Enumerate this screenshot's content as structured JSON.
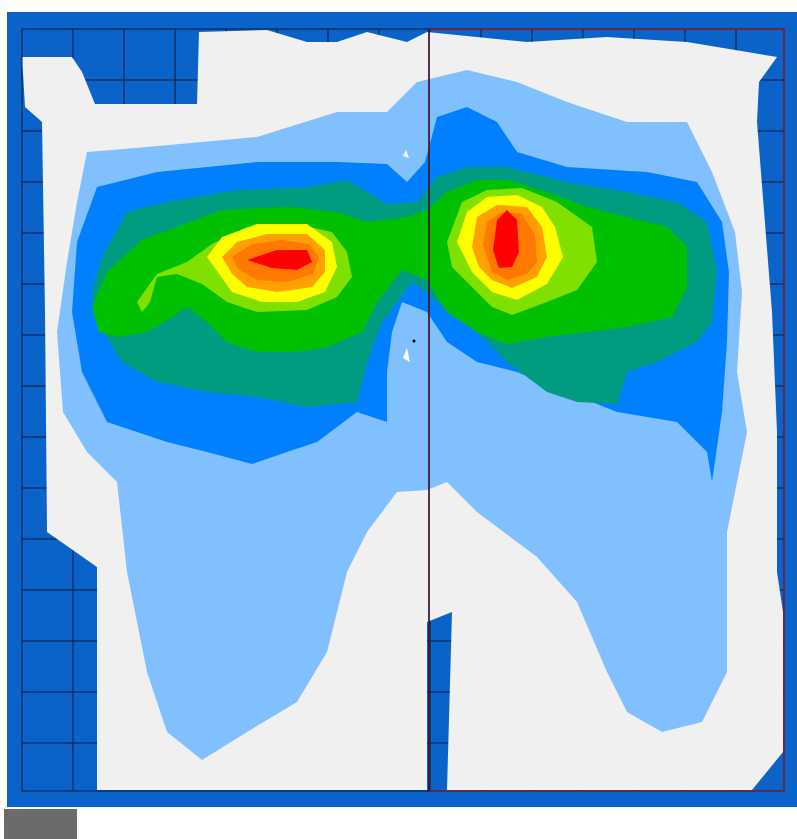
{
  "viewer": {
    "kind": "pressure-contour-map",
    "colors": {
      "frame": "#0a63c8",
      "background": "#f0f0f0",
      "grid_line": "#0b1a3a",
      "divider": "#8a1020",
      "swatch": "#6b6b6b"
    },
    "contour_levels": [
      {
        "level": 0,
        "color": "#f0f0f0"
      },
      {
        "level": 1,
        "color": "#80c0ff"
      },
      {
        "level": 2,
        "color": "#0080ff"
      },
      {
        "level": 3,
        "color": "#009c80"
      },
      {
        "level": 4,
        "color": "#00c000"
      },
      {
        "level": 5,
        "color": "#80e000"
      },
      {
        "level": 6,
        "color": "#ffff00"
      },
      {
        "level": 7,
        "color": "#ffa000"
      },
      {
        "level": 8,
        "color": "#ff7800"
      },
      {
        "level": 9,
        "color": "#ff0000"
      }
    ]
  }
}
